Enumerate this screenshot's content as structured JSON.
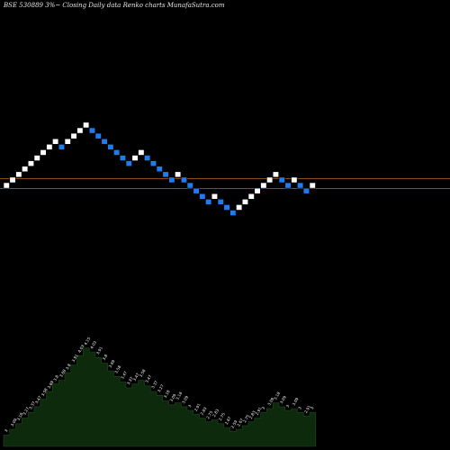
{
  "header": {
    "title": "BSE 530889 3%~  Closing Daily data  Renko  charts MunafaSutra.com"
  },
  "chart_data": {
    "type": "renko",
    "source_label": "BSE 530889 3%~",
    "data_type": "Closing Daily data",
    "chart_style": "Renko",
    "brand": "charts MunafaSutra.com",
    "box_size_pct": 3,
    "up_color": "#ffffff",
    "down_color": "#1e7cf0",
    "background": "#000000",
    "reference_line_color": "#9a5a1a",
    "volume_fill_color": "#0d2a0d",
    "bricks": [
      {
        "i": 0,
        "dir": "up",
        "level": 0
      },
      {
        "i": 1,
        "dir": "up",
        "level": 1
      },
      {
        "i": 2,
        "dir": "up",
        "level": 2
      },
      {
        "i": 3,
        "dir": "up",
        "level": 3
      },
      {
        "i": 4,
        "dir": "up",
        "level": 4
      },
      {
        "i": 5,
        "dir": "up",
        "level": 5
      },
      {
        "i": 6,
        "dir": "up",
        "level": 6
      },
      {
        "i": 7,
        "dir": "up",
        "level": 7
      },
      {
        "i": 8,
        "dir": "up",
        "level": 8
      },
      {
        "i": 9,
        "dir": "down",
        "level": 7
      },
      {
        "i": 10,
        "dir": "up",
        "level": 8
      },
      {
        "i": 11,
        "dir": "up",
        "level": 9
      },
      {
        "i": 12,
        "dir": "up",
        "level": 10
      },
      {
        "i": 13,
        "dir": "up",
        "level": 11
      },
      {
        "i": 14,
        "dir": "down",
        "level": 10
      },
      {
        "i": 15,
        "dir": "down",
        "level": 9
      },
      {
        "i": 16,
        "dir": "down",
        "level": 8
      },
      {
        "i": 17,
        "dir": "down",
        "level": 7
      },
      {
        "i": 18,
        "dir": "down",
        "level": 6
      },
      {
        "i": 19,
        "dir": "down",
        "level": 5
      },
      {
        "i": 20,
        "dir": "down",
        "level": 4
      },
      {
        "i": 21,
        "dir": "up",
        "level": 5
      },
      {
        "i": 22,
        "dir": "up",
        "level": 6
      },
      {
        "i": 23,
        "dir": "down",
        "level": 5
      },
      {
        "i": 24,
        "dir": "down",
        "level": 4
      },
      {
        "i": 25,
        "dir": "down",
        "level": 3
      },
      {
        "i": 26,
        "dir": "down",
        "level": 2
      },
      {
        "i": 27,
        "dir": "down",
        "level": 1
      },
      {
        "i": 28,
        "dir": "up",
        "level": 2
      },
      {
        "i": 29,
        "dir": "down",
        "level": 1
      },
      {
        "i": 30,
        "dir": "down",
        "level": 0
      },
      {
        "i": 31,
        "dir": "down",
        "level": -1
      },
      {
        "i": 32,
        "dir": "down",
        "level": -2
      },
      {
        "i": 33,
        "dir": "down",
        "level": -3
      },
      {
        "i": 34,
        "dir": "up",
        "level": -2
      },
      {
        "i": 35,
        "dir": "down",
        "level": -3
      },
      {
        "i": 36,
        "dir": "down",
        "level": -4
      },
      {
        "i": 37,
        "dir": "down",
        "level": -5
      },
      {
        "i": 38,
        "dir": "up",
        "level": -4
      },
      {
        "i": 39,
        "dir": "up",
        "level": -3
      },
      {
        "i": 40,
        "dir": "up",
        "level": -2
      },
      {
        "i": 41,
        "dir": "up",
        "level": -1
      },
      {
        "i": 42,
        "dir": "up",
        "level": 0
      },
      {
        "i": 43,
        "dir": "up",
        "level": 1
      },
      {
        "i": 44,
        "dir": "up",
        "level": 2
      },
      {
        "i": 45,
        "dir": "down",
        "level": 1
      },
      {
        "i": 46,
        "dir": "down",
        "level": 0
      },
      {
        "i": 47,
        "dir": "up",
        "level": 1
      },
      {
        "i": 48,
        "dir": "down",
        "level": 0
      },
      {
        "i": 49,
        "dir": "down",
        "level": -1
      },
      {
        "i": 50,
        "dir": "up",
        "level": 0
      }
    ],
    "reference_lines": [
      {
        "name": "upper",
        "level": 1.25
      },
      {
        "name": "lower",
        "level": -0.55
      }
    ],
    "volume_labels": [
      "3",
      "3.09",
      "3.18",
      "3.27",
      "3.37",
      "3.47",
      "3.58",
      "3.69",
      "3.8",
      "3.69",
      "3.8",
      "3.91",
      "4.03",
      "4.15",
      "4.03",
      "3.91",
      "3.8",
      "3.69",
      "3.58",
      "3.47",
      "3.37",
      "3.47",
      "3.58",
      "3.47",
      "3.37",
      "3.27",
      "3.18",
      "3.09",
      "3.18",
      "3.09",
      "3",
      "2.91",
      "2.83",
      "2.75",
      "2.83",
      "2.75",
      "2.67",
      "2.59",
      "2.67",
      "2.75",
      "2.83",
      "2.91",
      "3",
      "3.09",
      "3.18",
      "3.09",
      "3",
      "3.09",
      "3",
      "2.91",
      "3"
    ],
    "volume_values": [
      12,
      18,
      24,
      30,
      36,
      42,
      50,
      58,
      66,
      70,
      78,
      86,
      96,
      104,
      100,
      94,
      88,
      80,
      74,
      68,
      62,
      66,
      70,
      64,
      58,
      54,
      48,
      44,
      46,
      42,
      38,
      34,
      30,
      26,
      28,
      24,
      20,
      16,
      18,
      22,
      26,
      30,
      36,
      40,
      46,
      42,
      38,
      40,
      36,
      32,
      36
    ],
    "volume_ylim": [
      0,
      120
    ]
  }
}
